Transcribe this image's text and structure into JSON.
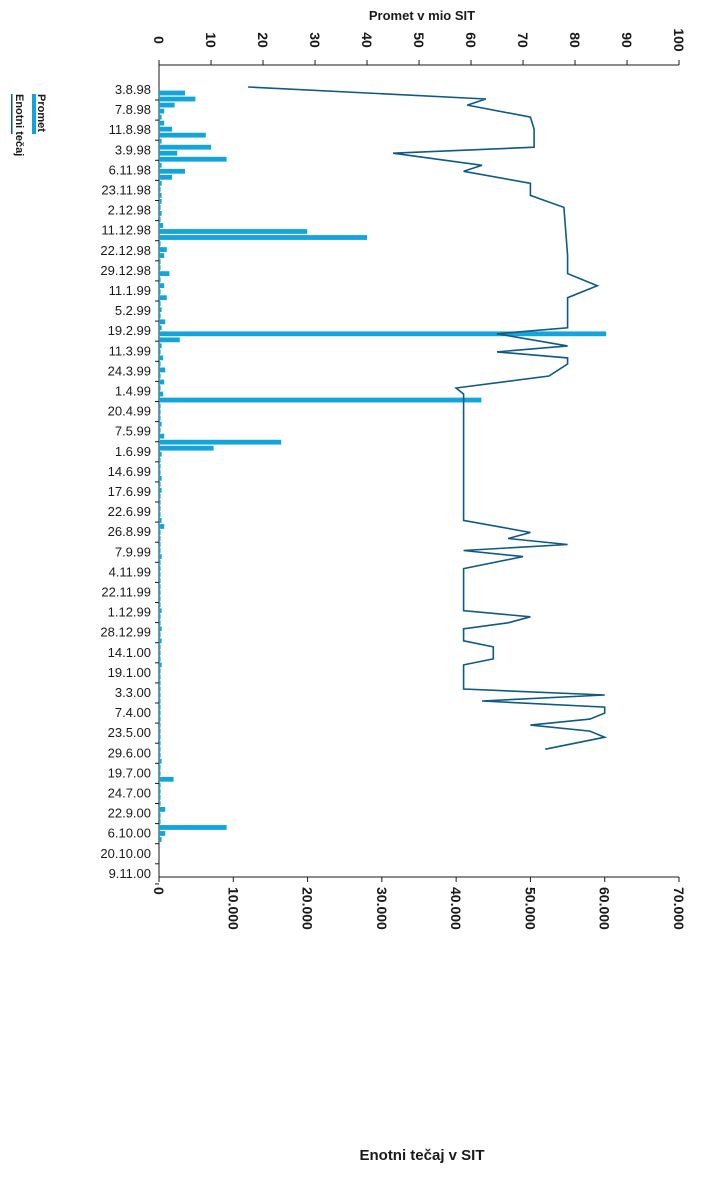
{
  "chart_data": {
    "type": "bar",
    "orientation": "rotated-90",
    "title_top": "Promet v mio SIT",
    "title_bottom": "Enotni tečaj v SIT",
    "axis_top": {
      "label": "Promet v mio SIT",
      "range": [
        0,
        100
      ],
      "ticks": [
        "0",
        "10",
        "20",
        "30",
        "40",
        "50",
        "60",
        "70",
        "80",
        "90",
        "100"
      ]
    },
    "axis_bottom": {
      "label": "Enotni tečaj v SIT",
      "range": [
        0,
        70000
      ],
      "ticks": [
        "0",
        "10.000",
        "20.000",
        "30.000",
        "40.000",
        "50.000",
        "60.000",
        "70.000"
      ]
    },
    "category_labels": [
      "3.8.98",
      "7.8.98",
      "11.8.98",
      "3.9.98",
      "6.11.98",
      "23.11.98",
      "2.12.98",
      "11.12.98",
      "22.12.98",
      "29.12.98",
      "11.1.99",
      "5.2.99",
      "19.2.99",
      "11.3.99",
      "24.3.99",
      "1.4.99",
      "20.4.99",
      "7.5.99",
      "1.6.99",
      "14.6.99",
      "17.6.99",
      "22.6.99",
      "26.8.99",
      "7.9.99",
      "4.11.99",
      "22.11.99",
      "1.12.99",
      "28.12.99",
      "14.1.00",
      "19.1.00",
      "3.3.00",
      "7.4.00",
      "23.5.00",
      "29.6.00",
      "19.7.00",
      "24.7.00",
      "22.9.00",
      "6.10.00",
      "20.10.00",
      "9.11.00"
    ],
    "legend_placement": "left",
    "series": [
      {
        "name": "Promet",
        "type": "bar",
        "color": "#14a4dc",
        "values": [
          0,
          5,
          7,
          3,
          1,
          0.5,
          1,
          2.5,
          9,
          0.5,
          10,
          3.5,
          13,
          0.5,
          5,
          2.5,
          0.5,
          0.3,
          0.5,
          0.5,
          0.3,
          0.5,
          0.3,
          0.8,
          28.5,
          40,
          0.3,
          1.5,
          1,
          0.3,
          0.3,
          2,
          0.3,
          1,
          0.3,
          1.5,
          0.3,
          0.5,
          0.3,
          1.2,
          0.5,
          86,
          4,
          0.5,
          0.3,
          0.8,
          0.3,
          1.2,
          0.3,
          1,
          0.3,
          0.8,
          62,
          0.3,
          0.3,
          0.3,
          0.5,
          0.3,
          1,
          23.5,
          10.5,
          0.5,
          0.3,
          0.3,
          0.3,
          0.5,
          0.3,
          0.5,
          0.3,
          0.3,
          0.3,
          0.3,
          0.5,
          1,
          0.3,
          0.3,
          0.3,
          0.3,
          0.5,
          0.3,
          0.3,
          0.3,
          0.3,
          0.3,
          0.3,
          0.3,
          0.3,
          0.5,
          0.3,
          0.3,
          0.5,
          0.3,
          0.5,
          0.3,
          0.3,
          0.3,
          0.5,
          0.3,
          0.3,
          0.3,
          0.3,
          0.3,
          0.3,
          0.3,
          0.3,
          0.3,
          0.3,
          0.3,
          0.3,
          0.3,
          0.3,
          0.3,
          0.5,
          0.3,
          0.3,
          2.8,
          0.3,
          0.3,
          0.3,
          0.3,
          1.2,
          0.3,
          0.3,
          13,
          1.2,
          0.5
        ]
      },
      {
        "name": "Enotni tečaj",
        "type": "line",
        "color": "#0e5a82",
        "points": [
          [
            0,
            12000
          ],
          [
            2,
            44000
          ],
          [
            3,
            41500
          ],
          [
            5,
            50000
          ],
          [
            7,
            50500
          ],
          [
            10,
            50500
          ],
          [
            11,
            31500
          ],
          [
            13,
            43500
          ],
          [
            14,
            41000
          ],
          [
            16,
            50000
          ],
          [
            18,
            50000
          ],
          [
            20,
            54500
          ],
          [
            28,
            55000
          ],
          [
            31,
            55000
          ],
          [
            33,
            59000
          ],
          [
            35,
            55000
          ],
          [
            38,
            55000
          ],
          [
            40,
            55000
          ],
          [
            41,
            45500
          ],
          [
            43,
            55000
          ],
          [
            44,
            45500
          ],
          [
            45,
            55000
          ],
          [
            46,
            55000
          ],
          [
            48,
            52500
          ],
          [
            50,
            40000
          ],
          [
            51,
            41000
          ],
          [
            70,
            41000
          ],
          [
            72,
            41000
          ],
          [
            74,
            50000
          ],
          [
            75,
            47000
          ],
          [
            76,
            55000
          ],
          [
            77,
            41000
          ],
          [
            78,
            49000
          ],
          [
            80,
            41000
          ],
          [
            84,
            41000
          ],
          [
            86,
            41000
          ],
          [
            87,
            41000
          ],
          [
            88,
            50000
          ],
          [
            89,
            47000
          ],
          [
            90,
            41000
          ],
          [
            92,
            41000
          ],
          [
            93,
            45000
          ],
          [
            95,
            45000
          ],
          [
            96,
            41000
          ],
          [
            99,
            41000
          ],
          [
            100,
            41000
          ],
          [
            101,
            60000
          ],
          [
            102,
            43500
          ],
          [
            103,
            60000
          ],
          [
            104,
            60000
          ],
          [
            105,
            58000
          ],
          [
            106,
            50000
          ],
          [
            107,
            58000
          ],
          [
            108,
            60000
          ],
          [
            110,
            52000
          ]
        ]
      }
    ]
  },
  "legend": {
    "items": [
      {
        "label": "Promet",
        "color": "#14a4dc"
      },
      {
        "label": "Enotni tečaj",
        "color": "#0e5a82"
      }
    ]
  }
}
